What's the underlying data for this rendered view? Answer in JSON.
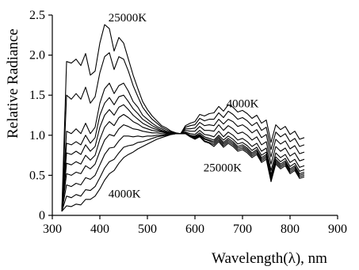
{
  "chart_data": {
    "type": "line",
    "title": "",
    "xlabel": "Wavelength(λ), nm",
    "ylabel": "Relative Radiance",
    "xlim": [
      300,
      900
    ],
    "ylim": [
      0,
      2.5
    ],
    "xticks": [
      300,
      400,
      500,
      600,
      700,
      800,
      900
    ],
    "yticks": [
      0,
      0.5,
      1.0,
      1.5,
      2.0,
      2.5
    ],
    "xtick_labels": [
      "300",
      "400",
      "500",
      "600",
      "700",
      "800",
      "900"
    ],
    "ytick_labels": [
      "0",
      "0.5",
      "1.0",
      "1.5",
      "2.0",
      "2.5"
    ],
    "grid": false,
    "legend": "none",
    "x": [
      320,
      330,
      340,
      350,
      360,
      370,
      380,
      390,
      400,
      410,
      420,
      430,
      440,
      450,
      460,
      470,
      480,
      490,
      500,
      510,
      520,
      530,
      540,
      550,
      560,
      570,
      580,
      590,
      600,
      610,
      620,
      630,
      640,
      650,
      660,
      670,
      680,
      690,
      700,
      710,
      720,
      730,
      740,
      750,
      760,
      770,
      780,
      790,
      800,
      810,
      820,
      830
    ],
    "series": [
      {
        "values": [
          0.05,
          1.92,
          1.9,
          1.95,
          1.87,
          2.02,
          1.75,
          1.8,
          2.15,
          2.38,
          2.33,
          2.05,
          2.22,
          2.15,
          1.95,
          1.75,
          1.58,
          1.42,
          1.32,
          1.24,
          1.18,
          1.12,
          1.09,
          1.05,
          1.03,
          1.02,
          1.02,
          0.98,
          0.95,
          0.98,
          0.92,
          0.9,
          0.86,
          0.92,
          0.85,
          0.9,
          0.86,
          0.8,
          0.82,
          0.78,
          0.72,
          0.76,
          0.66,
          0.7,
          0.42,
          0.64,
          0.58,
          0.62,
          0.52,
          0.56,
          0.46,
          0.48
        ]
      },
      {
        "values": [
          0.05,
          1.5,
          1.45,
          1.52,
          1.45,
          1.6,
          1.4,
          1.48,
          1.78,
          1.98,
          2.03,
          1.82,
          1.98,
          1.95,
          1.8,
          1.62,
          1.48,
          1.35,
          1.27,
          1.2,
          1.15,
          1.1,
          1.07,
          1.04,
          1.02,
          1.02,
          1.02,
          0.98,
          0.96,
          0.99,
          0.93,
          0.91,
          0.88,
          0.94,
          0.87,
          0.92,
          0.88,
          0.82,
          0.84,
          0.8,
          0.74,
          0.78,
          0.68,
          0.72,
          0.44,
          0.66,
          0.6,
          0.64,
          0.54,
          0.58,
          0.48,
          0.5
        ]
      },
      {
        "values": [
          0.05,
          1.05,
          1.02,
          1.08,
          1.02,
          1.15,
          1.02,
          1.1,
          1.4,
          1.58,
          1.65,
          1.52,
          1.62,
          1.65,
          1.55,
          1.42,
          1.35,
          1.25,
          1.2,
          1.15,
          1.11,
          1.08,
          1.05,
          1.03,
          1.02,
          1.02,
          1.02,
          0.99,
          0.97,
          1.0,
          0.95,
          0.93,
          0.9,
          0.96,
          0.89,
          0.94,
          0.9,
          0.84,
          0.86,
          0.82,
          0.76,
          0.8,
          0.7,
          0.74,
          0.46,
          0.68,
          0.62,
          0.66,
          0.56,
          0.6,
          0.5,
          0.52
        ]
      },
      {
        "values": [
          0.05,
          0.9,
          0.88,
          0.92,
          0.88,
          1.0,
          0.9,
          0.97,
          1.25,
          1.4,
          1.47,
          1.38,
          1.48,
          1.5,
          1.42,
          1.33,
          1.27,
          1.2,
          1.16,
          1.12,
          1.09,
          1.06,
          1.04,
          1.03,
          1.02,
          1.02,
          1.02,
          0.99,
          0.98,
          1.01,
          0.96,
          0.94,
          0.92,
          0.98,
          0.91,
          0.96,
          0.92,
          0.86,
          0.88,
          0.84,
          0.78,
          0.82,
          0.72,
          0.76,
          0.48,
          0.7,
          0.64,
          0.68,
          0.58,
          0.62,
          0.52,
          0.54
        ]
      },
      {
        "values": [
          0.05,
          0.78,
          0.76,
          0.8,
          0.76,
          0.88,
          0.8,
          0.86,
          1.1,
          1.25,
          1.32,
          1.25,
          1.35,
          1.38,
          1.32,
          1.25,
          1.2,
          1.15,
          1.12,
          1.09,
          1.07,
          1.05,
          1.03,
          1.02,
          1.02,
          1.02,
          1.03,
          1.0,
          0.99,
          1.03,
          0.98,
          0.96,
          0.94,
          1.0,
          0.94,
          0.99,
          0.95,
          0.89,
          0.91,
          0.87,
          0.81,
          0.85,
          0.75,
          0.79,
          0.51,
          0.73,
          0.67,
          0.71,
          0.61,
          0.65,
          0.55,
          0.57
        ]
      },
      {
        "values": [
          0.05,
          0.65,
          0.63,
          0.67,
          0.64,
          0.75,
          0.69,
          0.75,
          0.95,
          1.1,
          1.17,
          1.12,
          1.22,
          1.26,
          1.22,
          1.17,
          1.14,
          1.1,
          1.08,
          1.06,
          1.05,
          1.04,
          1.03,
          1.02,
          1.02,
          1.02,
          1.04,
          1.02,
          1.01,
          1.06,
          1.01,
          1.0,
          0.98,
          1.05,
          0.98,
          1.04,
          1.0,
          0.94,
          0.96,
          0.92,
          0.86,
          0.9,
          0.8,
          0.84,
          0.56,
          0.78,
          0.72,
          0.76,
          0.66,
          0.7,
          0.6,
          0.62
        ]
      },
      {
        "values": [
          0.05,
          0.52,
          0.5,
          0.54,
          0.52,
          0.62,
          0.58,
          0.64,
          0.8,
          0.94,
          1.01,
          0.99,
          1.08,
          1.13,
          1.11,
          1.08,
          1.07,
          1.05,
          1.04,
          1.03,
          1.03,
          1.02,
          1.02,
          1.02,
          1.02,
          1.02,
          1.06,
          1.05,
          1.05,
          1.11,
          1.06,
          1.06,
          1.05,
          1.13,
          1.06,
          1.12,
          1.08,
          1.02,
          1.04,
          1.0,
          0.94,
          0.98,
          0.88,
          0.92,
          0.64,
          0.86,
          0.8,
          0.84,
          0.74,
          0.78,
          0.68,
          0.7
        ]
      },
      {
        "values": [
          0.05,
          0.38,
          0.36,
          0.4,
          0.38,
          0.47,
          0.45,
          0.5,
          0.63,
          0.76,
          0.84,
          0.85,
          0.93,
          0.99,
          0.99,
          0.98,
          0.99,
          0.98,
          0.99,
          0.99,
          1.0,
          1.0,
          1.01,
          1.01,
          1.02,
          1.02,
          1.08,
          1.08,
          1.09,
          1.16,
          1.12,
          1.13,
          1.12,
          1.2,
          1.14,
          1.2,
          1.17,
          1.11,
          1.13,
          1.09,
          1.03,
          1.07,
          0.97,
          1.01,
          0.73,
          0.95,
          0.89,
          0.93,
          0.83,
          0.87,
          0.77,
          0.79
        ]
      },
      {
        "values": [
          0.05,
          0.24,
          0.22,
          0.26,
          0.24,
          0.32,
          0.31,
          0.36,
          0.47,
          0.59,
          0.67,
          0.7,
          0.78,
          0.85,
          0.87,
          0.88,
          0.91,
          0.92,
          0.94,
          0.96,
          0.98,
          0.99,
          1.0,
          1.01,
          1.02,
          1.02,
          1.1,
          1.12,
          1.13,
          1.21,
          1.18,
          1.2,
          1.2,
          1.28,
          1.22,
          1.3,
          1.26,
          1.2,
          1.22,
          1.18,
          1.12,
          1.16,
          1.06,
          1.1,
          0.82,
          1.04,
          0.98,
          1.02,
          0.92,
          0.96,
          0.86,
          0.88
        ]
      },
      {
        "values": [
          0.05,
          0.12,
          0.11,
          0.14,
          0.13,
          0.2,
          0.2,
          0.24,
          0.33,
          0.44,
          0.52,
          0.56,
          0.65,
          0.72,
          0.76,
          0.79,
          0.83,
          0.86,
          0.89,
          0.92,
          0.95,
          0.97,
          0.99,
          1.01,
          1.02,
          1.02,
          1.12,
          1.15,
          1.17,
          1.26,
          1.24,
          1.27,
          1.28,
          1.36,
          1.3,
          1.38,
          1.35,
          1.29,
          1.31,
          1.27,
          1.21,
          1.25,
          1.15,
          1.19,
          0.91,
          1.13,
          1.07,
          1.11,
          1.01,
          1.05,
          0.95,
          0.97
        ]
      }
    ],
    "annotations": [
      {
        "text": "25000K",
        "x": 418,
        "y": 2.42
      },
      {
        "text": "4000K",
        "x": 666,
        "y": 1.35
      },
      {
        "text": "25000K",
        "x": 618,
        "y": 0.55
      },
      {
        "text": "4000K",
        "x": 418,
        "y": 0.22
      }
    ]
  }
}
